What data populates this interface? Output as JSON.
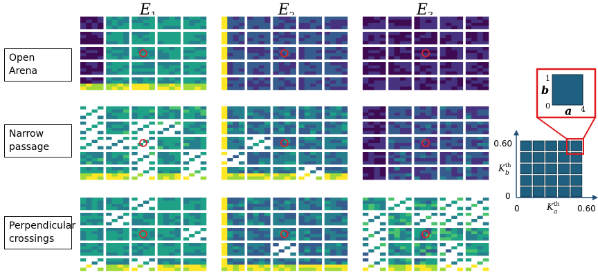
{
  "columns": [
    {
      "base": "E",
      "sub": "1"
    },
    {
      "base": "E",
      "sub": "2"
    },
    {
      "base": "E",
      "sub": "3"
    }
  ],
  "rows": [
    {
      "label_line1": "Open",
      "label_line2": "Arena"
    },
    {
      "label_line1": "Narrow",
      "label_line2": "passage"
    },
    {
      "label_line1": "Perpendicular",
      "label_line2": "crossings"
    }
  ],
  "legend": {
    "inset_b_label": "b",
    "inset_a_label": "a",
    "inset_b_max": "1",
    "inset_zero": "0",
    "inset_a_max": "4",
    "y_max": "0.60",
    "x_max": "0.60",
    "origin": "0",
    "y_axis_label": "K",
    "y_axis_sub": "b",
    "y_axis_sup": "th",
    "x_axis_label": "K",
    "x_axis_sub": "a",
    "x_axis_sup": "th"
  },
  "colors": {
    "marker": "#d62728",
    "legend_cell": "#1f5f80",
    "legend_cell_border": "#0b2b3a",
    "callout": "#e0191e",
    "axis": "#1f4e79",
    "palette": [
      "#3e0b53",
      "#46327e",
      "#365c8d",
      "#277f8e",
      "#1fa187",
      "#4ac16d",
      "#a0da39",
      "#fde725"
    ]
  }
}
